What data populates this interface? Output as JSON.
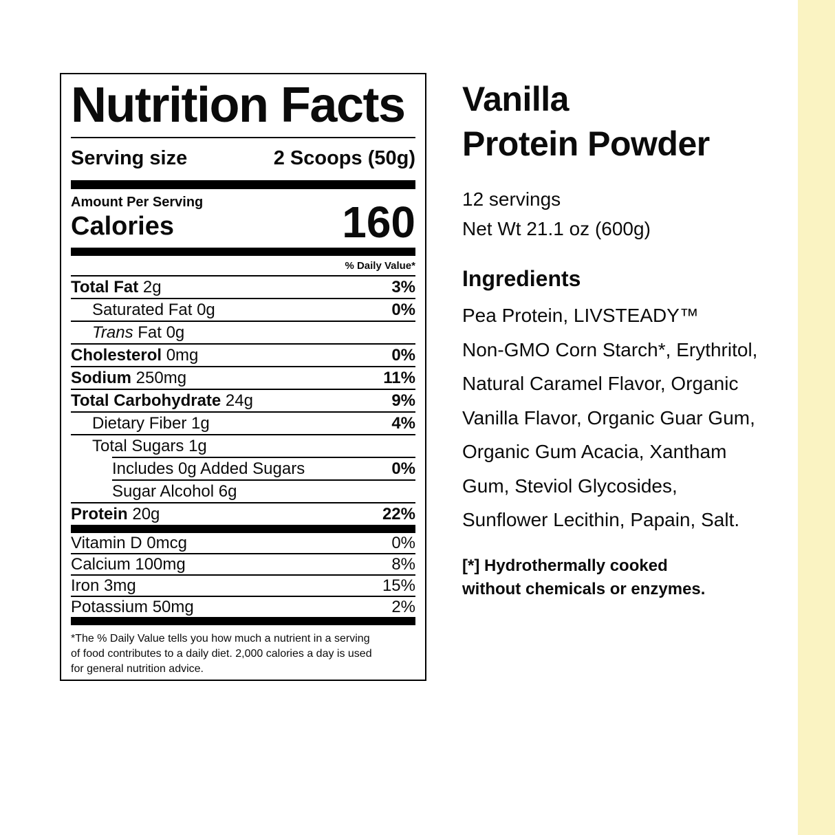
{
  "panel": {
    "title": "Nutrition Facts",
    "serving_size_label": "Serving size",
    "serving_size_value": "2 Scoops (50g)",
    "amount_per_serving": "Amount Per Serving",
    "calories_label": "Calories",
    "calories_value": "160",
    "daily_value_header": "% Daily Value*",
    "rows": [
      {
        "bold": "Total Fat ",
        "text": "2g",
        "pct": "3%"
      },
      {
        "text": "Saturated Fat 0g",
        "pct": "0%"
      },
      {
        "italic": "Trans ",
        "text": "Fat 0g",
        "pct": ""
      },
      {
        "bold": "Cholesterol ",
        "text": "0mg",
        "pct": "0%"
      },
      {
        "bold": "Sodium ",
        "text": "250mg",
        "pct": "11%"
      },
      {
        "bold": "Total Carbohydrate ",
        "text": "24g",
        "pct": "9%"
      },
      {
        "text": "Dietary Fiber 1g",
        "pct": "4%"
      },
      {
        "text": "Total Sugars 1g",
        "pct": ""
      },
      {
        "text": "Includes 0g Added Sugars",
        "pct": "0%"
      },
      {
        "text": "Sugar Alcohol 6g",
        "pct": ""
      },
      {
        "bold": "Protein ",
        "text": "20g",
        "pct": "22%"
      }
    ],
    "micros": [
      {
        "text": "Vitamin D 0mcg",
        "pct": "0%"
      },
      {
        "text": "Calcium 100mg",
        "pct": "8%"
      },
      {
        "text": "Iron 3mg",
        "pct": "15%"
      },
      {
        "text": "Potassium 50mg",
        "pct": "2%"
      }
    ],
    "footnote": "*The % Daily Value tells you how much a nutrient in a serving\nof food contributes to a daily diet. 2,000 calories a day is used\nfor general nutrition advice."
  },
  "product": {
    "title": "Vanilla\nProtein Powder",
    "servings": "12 servings",
    "net_weight": "Net Wt 21.1 oz (600g)",
    "ingredients_heading": "Ingredients",
    "ingredients": "Pea Protein, LIVSTEADY™\nNon-GMO Corn Starch*, Erythritol,\nNatural Caramel Flavor, Organic\nVanilla Flavor, Organic Guar Gum,\nOrganic Gum Acacia, Xantham\nGum, Steviol Glycosides,\nSunflower Lecithin, Papain, Salt.",
    "footnote": "[*] Hydrothermally cooked\nwithout chemicals or enzymes."
  },
  "colors": {
    "accent_strip": "#faf3c2",
    "text": "#0b0b0b",
    "rule": "#000000"
  }
}
